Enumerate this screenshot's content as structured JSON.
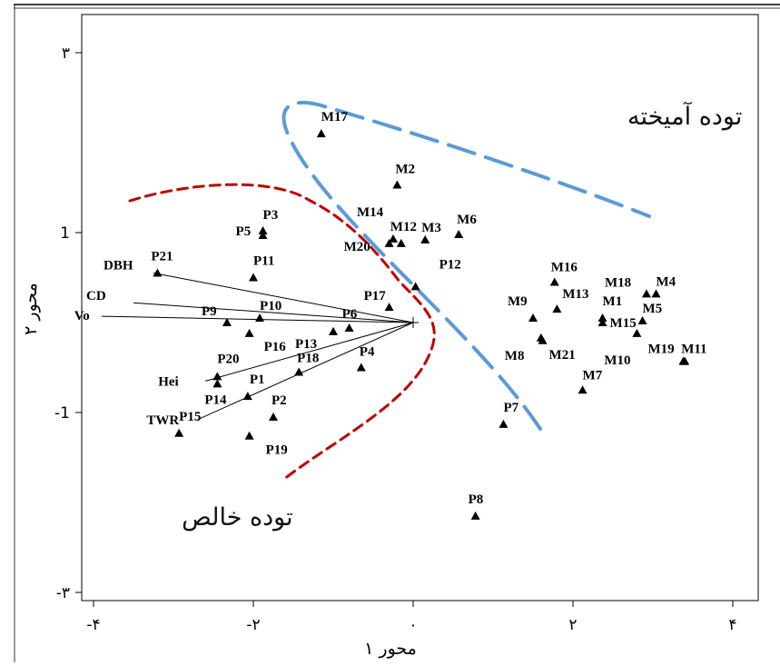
{
  "chart_data": {
    "type": "scatter",
    "xlabel": "محور ۱",
    "ylabel": "محور ۲",
    "xlim": [
      -4.2,
      4.2
    ],
    "ylim": [
      -3.05,
      3.05
    ],
    "xticks": [
      {
        "value": -4,
        "label": "-۴"
      },
      {
        "value": -2,
        "label": "-۲"
      },
      {
        "value": 0,
        "label": "۰"
      },
      {
        "value": 2,
        "label": "۲"
      },
      {
        "value": 4,
        "label": "۴"
      }
    ],
    "yticks": [
      {
        "value": 3,
        "label": "۳"
      },
      {
        "value": 1,
        "label": "1"
      },
      {
        "value": -1,
        "label": "-1"
      },
      {
        "value": -3,
        "label": "-۳"
      }
    ],
    "points": [
      {
        "label": "M17",
        "x": -1.15,
        "y": 2.1
      },
      {
        "label": "M2",
        "x": -0.2,
        "y": 1.53
      },
      {
        "label": "M14",
        "x": -0.25,
        "y": 0.93
      },
      {
        "label": "M12",
        "x": -0.15,
        "y": 0.88
      },
      {
        "label": "M20",
        "x": -0.3,
        "y": 0.88
      },
      {
        "label": "M3",
        "x": 0.15,
        "y": 0.92
      },
      {
        "label": "M6",
        "x": 0.57,
        "y": 0.98
      },
      {
        "label": "P5",
        "x": -1.88,
        "y": 0.97
      },
      {
        "label": "P3",
        "x": -1.88,
        "y": 1.02
      },
      {
        "label": "P21",
        "x": -3.2,
        "y": 0.55
      },
      {
        "label": "P11",
        "x": -2.0,
        "y": 0.5
      },
      {
        "label": "P12",
        "x": 0.03,
        "y": 0.4
      },
      {
        "label": "P17",
        "x": -0.3,
        "y": 0.17
      },
      {
        "label": "P10",
        "x": -1.92,
        "y": 0.05
      },
      {
        "label": "P9",
        "x": -2.33,
        "y": 0.0
      },
      {
        "label": "P6",
        "x": -0.8,
        "y": -0.06
      },
      {
        "label": "P13",
        "x": -1.0,
        "y": -0.1
      },
      {
        "label": "P16",
        "x": -2.05,
        "y": -0.12
      },
      {
        "label": "P4",
        "x": -0.65,
        "y": -0.5
      },
      {
        "label": "P18",
        "x": -1.43,
        "y": -0.55
      },
      {
        "label": "P20",
        "x": -2.45,
        "y": -0.6
      },
      {
        "label": "P14",
        "x": -2.45,
        "y": -0.68
      },
      {
        "label": "P1",
        "x": -2.07,
        "y": -0.82
      },
      {
        "label": "P2",
        "x": -1.75,
        "y": -1.05
      },
      {
        "label": "P15",
        "x": -2.93,
        "y": -1.23
      },
      {
        "label": "P19",
        "x": -2.05,
        "y": -1.26
      },
      {
        "label": "P7",
        "x": 1.13,
        "y": -1.13
      },
      {
        "label": "P8",
        "x": 0.78,
        "y": -2.15
      },
      {
        "label": "M16",
        "x": 1.77,
        "y": 0.45
      },
      {
        "label": "M13",
        "x": 1.8,
        "y": 0.15
      },
      {
        "label": "M9",
        "x": 1.5,
        "y": 0.05
      },
      {
        "label": "M8",
        "x": 1.6,
        "y": -0.17
      },
      {
        "label": "M21",
        "x": 1.62,
        "y": -0.2
      },
      {
        "label": "M1",
        "x": 2.37,
        "y": 0.05
      },
      {
        "label": "M15",
        "x": 2.37,
        "y": 0.0
      },
      {
        "label": "M18",
        "x": 2.92,
        "y": 0.32
      },
      {
        "label": "M4",
        "x": 3.04,
        "y": 0.32
      },
      {
        "label": "M5",
        "x": 2.87,
        "y": 0.02
      },
      {
        "label": "M10",
        "x": 2.8,
        "y": -0.12
      },
      {
        "label": "M19",
        "x": 3.38,
        "y": -0.43
      },
      {
        "label": "M11",
        "x": 3.4,
        "y": -0.43
      },
      {
        "label": "M7",
        "x": 2.12,
        "y": -0.75
      }
    ],
    "label_points": [
      "M17",
      "M2",
      "M14",
      "M12",
      "M20",
      "M3",
      "M6",
      "P3",
      "P5",
      "P21",
      "P11",
      "P12",
      "P17",
      "P10",
      "P9",
      "P6",
      "P13",
      "P16",
      "P4",
      "P18",
      "P20",
      "P14",
      "P1",
      "P2",
      "P15",
      "P19",
      "P7",
      "P8",
      "M16",
      "M13",
      "M9",
      "M8",
      "M21",
      "M1",
      "M15",
      "M18",
      "M4",
      "M5",
      "M10",
      "M19",
      "M11",
      "M7"
    ],
    "vectors": [
      {
        "label": "DBH",
        "x": -3.25,
        "y": 0.55
      },
      {
        "label": "CD",
        "x": -3.5,
        "y": 0.22
      },
      {
        "label": "Vo",
        "x": -3.9,
        "y": 0.07
      },
      {
        "label": "Hei",
        "x": -2.6,
        "y": -0.65
      },
      {
        "label": "TWR",
        "x": -2.7,
        "y": -1.08
      }
    ],
    "regions": [
      {
        "label": "توده آمیخته",
        "color": "#5b9bd5",
        "x": 3.4,
        "y": 2.2
      },
      {
        "label": "توده خالص",
        "color": "#c00000",
        "x": -2.2,
        "y": -2.25
      }
    ]
  }
}
